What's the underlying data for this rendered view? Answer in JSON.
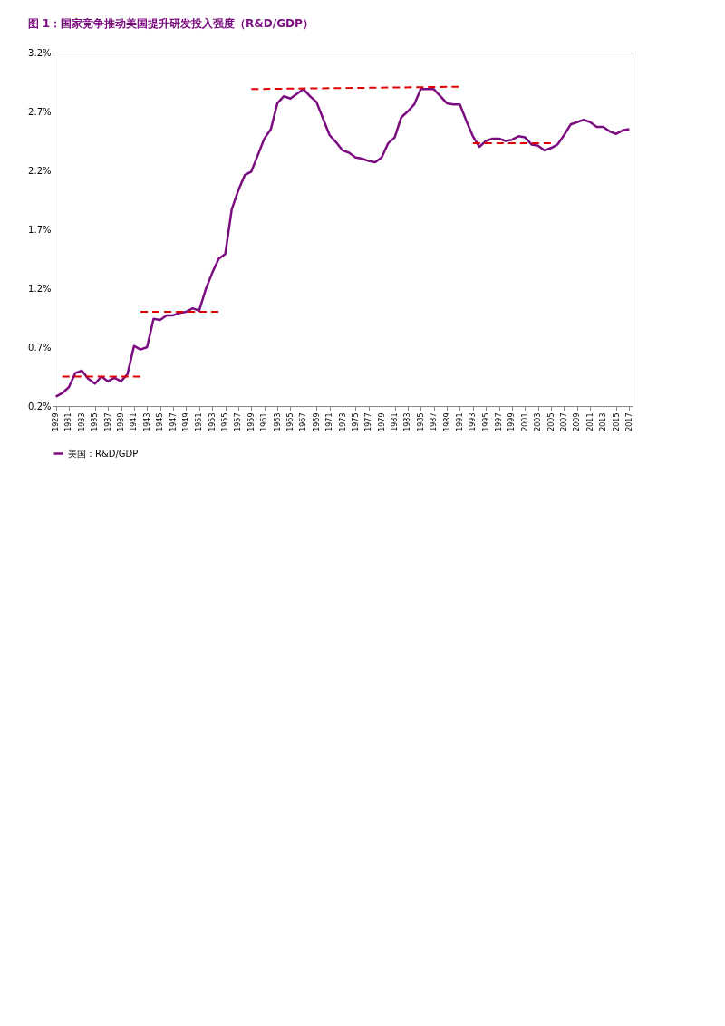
{
  "chart_data": {
    "type": "line",
    "title": "图 1：国家竞争推动美国提升研发投入强度（R&D/GDP）",
    "x": [
      1929,
      1930,
      1931,
      1932,
      1933,
      1934,
      1935,
      1936,
      1937,
      1938,
      1939,
      1940,
      1941,
      1942,
      1943,
      1944,
      1945,
      1946,
      1947,
      1948,
      1949,
      1950,
      1951,
      1952,
      1953,
      1954,
      1955,
      1956,
      1957,
      1958,
      1959,
      1960,
      1961,
      1962,
      1963,
      1964,
      1965,
      1966,
      1967,
      1968,
      1969,
      1970,
      1971,
      1972,
      1973,
      1974,
      1975,
      1976,
      1977,
      1978,
      1979,
      1980,
      1981,
      1982,
      1983,
      1984,
      1985,
      1986,
      1987,
      1988,
      1989,
      1990,
      1991,
      1992,
      1993,
      1994,
      1995,
      1996,
      1997,
      1998,
      1999,
      2000,
      2001,
      2002,
      2003,
      2004,
      2005,
      2006,
      2007,
      2008,
      2009,
      2010,
      2011,
      2012,
      2013,
      2014,
      2015,
      2016,
      2017
    ],
    "series": [
      {
        "name": "美国：R&D/GDP",
        "color": "#7b0c7f",
        "line_style": "solid",
        "values": [
          0.28,
          0.31,
          0.36,
          0.48,
          0.5,
          0.43,
          0.39,
          0.45,
          0.41,
          0.44,
          0.41,
          0.47,
          0.71,
          0.68,
          0.7,
          0.94,
          0.93,
          0.97,
          0.97,
          0.99,
          1.0,
          1.03,
          1.01,
          1.19,
          1.33,
          1.45,
          1.49,
          1.87,
          2.03,
          2.16,
          2.19,
          2.33,
          2.47,
          2.55,
          2.77,
          2.83,
          2.81,
          2.85,
          2.89,
          2.83,
          2.78,
          2.64,
          2.5,
          2.44,
          2.37,
          2.35,
          2.31,
          2.3,
          2.28,
          2.27,
          2.31,
          2.43,
          2.48,
          2.65,
          2.7,
          2.76,
          2.89,
          2.89,
          2.89,
          2.83,
          2.77,
          2.76,
          2.76,
          2.62,
          2.49,
          2.4,
          2.45,
          2.47,
          2.47,
          2.45,
          2.46,
          2.49,
          2.48,
          2.42,
          2.41,
          2.37,
          2.39,
          2.42,
          2.5,
          2.59,
          2.61,
          2.63,
          2.61,
          2.57,
          2.57,
          2.53,
          2.51,
          2.54,
          2.55
        ]
      },
      {
        "color": "#e00000",
        "line_style": "dashed",
        "x": [
          1930,
          1942
        ],
        "values": [
          0.45,
          0.45
        ]
      },
      {
        "color": "#e00000",
        "line_style": "dashed",
        "x": [
          1942,
          1954
        ],
        "values": [
          1.0,
          1.0
        ]
      },
      {
        "color": "#e00000",
        "line_style": "dashed",
        "x": [
          1959,
          1991
        ],
        "values": [
          2.89,
          2.91
        ]
      },
      {
        "color": "#e00000",
        "line_style": "dashed",
        "x": [
          1993,
          2005
        ],
        "values": [
          2.43,
          2.43
        ]
      }
    ],
    "xlim": [
      1928.5,
      2017.5
    ],
    "xticks": [
      1929,
      1931,
      1933,
      1935,
      1937,
      1939,
      1941,
      1943,
      1945,
      1947,
      1949,
      1951,
      1953,
      1955,
      1957,
      1959,
      1961,
      1963,
      1965,
      1967,
      1969,
      1971,
      1973,
      1975,
      1977,
      1979,
      1981,
      1983,
      1985,
      1987,
      1989,
      1991,
      1993,
      1995,
      1997,
      1999,
      2001,
      2003,
      2005,
      2007,
      2009,
      2011,
      2013,
      2015,
      2017
    ],
    "ylim": [
      0.2,
      3.2
    ],
    "yticks": [
      {
        "value": 0.2,
        "label": "0.2%"
      },
      {
        "value": 0.7,
        "label": "0.7%"
      },
      {
        "value": 1.2,
        "label": "1.2%"
      },
      {
        "value": 1.7,
        "label": "1.7%"
      },
      {
        "value": 2.2,
        "label": "2.2%"
      },
      {
        "value": 2.7,
        "label": "2.7%"
      },
      {
        "value": 3.2,
        "label": "3.2%"
      }
    ],
    "grid": false,
    "legend": "bottom",
    "marker": "none"
  }
}
